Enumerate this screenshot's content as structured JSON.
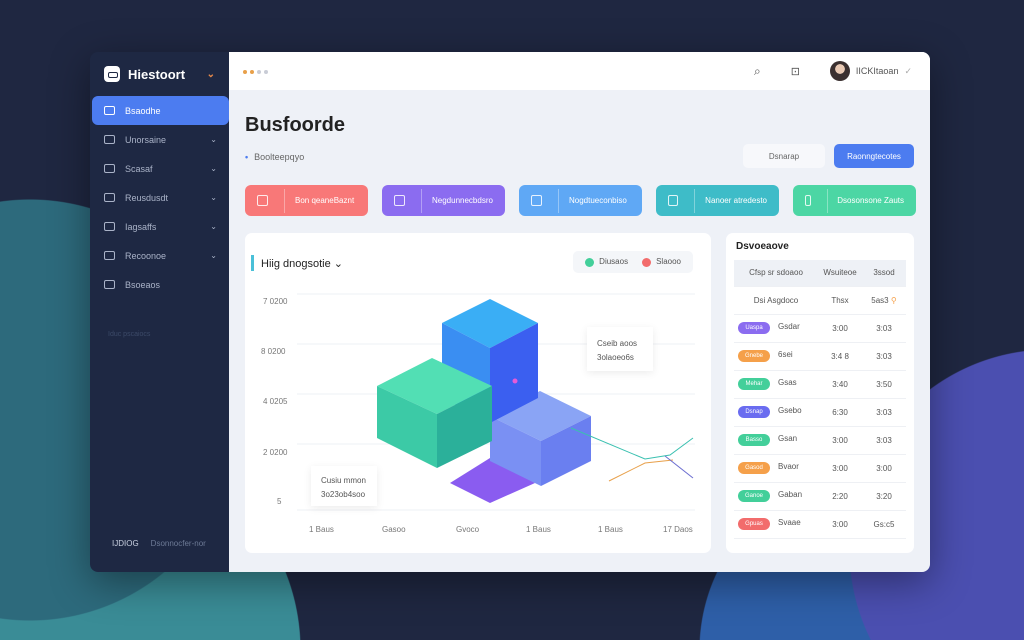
{
  "app": {
    "title": "Hiestoort"
  },
  "sidebar": {
    "items": [
      {
        "label": "Bsaodhe",
        "icon": "dashboard-icon",
        "active": true
      },
      {
        "label": "Unorsaine",
        "icon": "calendar-icon"
      },
      {
        "label": "Scasaf",
        "icon": "document-icon"
      },
      {
        "label": "Reusdusdt",
        "icon": "clipboard-icon"
      },
      {
        "label": "Iagsaffs",
        "icon": "inbox-icon"
      },
      {
        "label": "Recoonoe",
        "icon": "settings-icon"
      },
      {
        "label": "Bsoeaos",
        "icon": "chat-icon"
      }
    ],
    "section": "Iduc pscaiocs",
    "footer": {
      "left": "IJDIOG",
      "right": "Dsonnocfer-nor"
    }
  },
  "topbar": {
    "user": "IICKItaoan",
    "icons": [
      "search-icon",
      "bookmark-icon"
    ]
  },
  "page": {
    "title": "Busfoorde",
    "breadcrumb": "Boolteepqyo",
    "secondary_button": "Dsnarap",
    "primary_button": "Raonngtecotes"
  },
  "cards": [
    {
      "label": "Bon qeaneBaznt",
      "color": "#f87878",
      "icon": "cart-icon"
    },
    {
      "label": "Negdunnecbdsro",
      "color": "#8b6cf0",
      "icon": "calendar-icon"
    },
    {
      "label": "Nogdtueconbiso",
      "color": "#5fa8f5",
      "icon": "flask-icon"
    },
    {
      "label": "Nanoer atredesto",
      "color": "#3ebcc8",
      "icon": "file-icon"
    },
    {
      "label": "Dsosonsone Zauts",
      "color": "#4cd6a4",
      "icon": "bag-icon"
    }
  ],
  "chart": {
    "title": "Hiig dnogsotie",
    "legend": [
      {
        "label": "Diusaos",
        "color": "#43cf9a"
      },
      {
        "label": "Slaooo",
        "color": "#f26c6c"
      }
    ],
    "y_ticks": [
      "7 0200",
      "8 0200",
      "4 0205",
      "2 0200",
      "5"
    ],
    "x_ticks": [
      "1 Baus",
      "Gasoo",
      "Gvoco",
      "1 Baus",
      "1 Baus",
      "17 Daos"
    ],
    "tooltips": [
      {
        "line1": "Cseib aoos",
        "line2": "3olaoeo6s"
      },
      {
        "line1": "Cusiu mmon",
        "line2": "3o23ob4soo"
      }
    ]
  },
  "table": {
    "title": "Dsvoeaove",
    "headers": [
      "Cfsp sr sdoaoo",
      "Wsuiteoe",
      "3ssod"
    ],
    "subheader": [
      "Dsi Asgdoco",
      "Thsx",
      "5as3"
    ],
    "rows": [
      {
        "tag": "Uaspa",
        "tag_color": "#8b6cf0",
        "name": "Gsdar",
        "v1": "3:00",
        "v2": "3:03"
      },
      {
        "tag": "Gnebe",
        "tag_color": "#f5a04a",
        "name": "6sei",
        "v1": "3:4 8",
        "v2": "3:03"
      },
      {
        "tag": "Mehar",
        "tag_color": "#43cf9a",
        "name": "Gsas",
        "v1": "3:40",
        "v2": "3:50"
      },
      {
        "tag": "Dsnap",
        "tag_color": "#6a6cf0",
        "name": "Gsebo",
        "v1": "6:30",
        "v2": "3:03"
      },
      {
        "tag": "Basso",
        "tag_color": "#43cf9a",
        "name": "Gsan",
        "v1": "3:00",
        "v2": "3:03"
      },
      {
        "tag": "Gasod",
        "tag_color": "#f5a04a",
        "name": "Bvaor",
        "v1": "3:00",
        "v2": "3:00"
      },
      {
        "tag": "Ganoe",
        "tag_color": "#43cf9a",
        "name": "Gaban",
        "v1": "2:20",
        "v2": "3:20"
      },
      {
        "tag": "Gpuas",
        "tag_color": "#f26c6c",
        "name": "Svaae",
        "v1": "3:00",
        "v2": "Gs:c5"
      }
    ]
  }
}
